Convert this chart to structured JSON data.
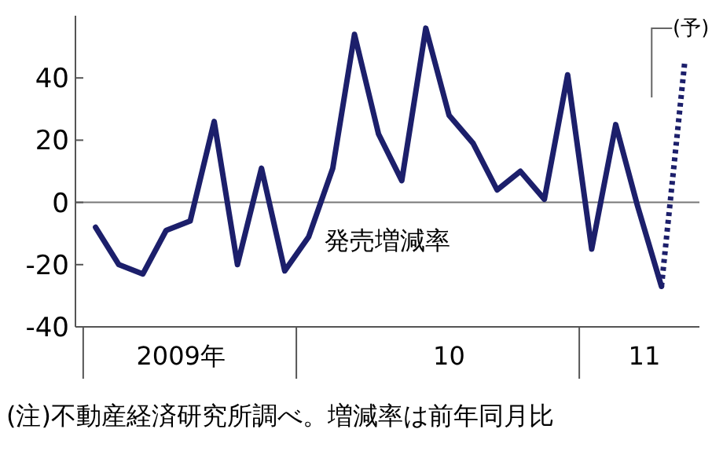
{
  "chart_data": {
    "type": "line",
    "x": [
      "2009-04",
      "2009-05",
      "2009-06",
      "2009-07",
      "2009-08",
      "2009-09",
      "2009-10",
      "2009-11",
      "2009-12",
      "2010-01",
      "2010-02",
      "2010-03",
      "2010-04",
      "2010-05",
      "2010-06",
      "2010-07",
      "2010-08",
      "2010-09",
      "2010-10",
      "2010-11",
      "2010-12",
      "2011-01",
      "2011-02",
      "2011-03",
      "2011-04"
    ],
    "series": [
      {
        "name": "発売増減率",
        "color": "#1c1f6b",
        "values": [
          -8,
          -20,
          -23,
          -9,
          -6,
          26,
          -20,
          11,
          -22,
          -11,
          11,
          54,
          22,
          7,
          56,
          28,
          19,
          4,
          10,
          1,
          41,
          -15,
          25,
          -1,
          -27
        ]
      },
      {
        "type": "line",
        "color": "#1c1f6b",
        "line_style": "dotted",
        "x": [
          "2011-04",
          "2011-05"
        ],
        "values": [
          -27,
          45
        ]
      }
    ],
    "xlim": [
      "2009-03-06",
      "2011-05-20"
    ],
    "xticks": [
      {
        "value": "2009-03-16",
        "label": null
      },
      {
        "value": "2009-07-20",
        "label": "2009年"
      },
      {
        "value": "2009-12-16",
        "label": null
      },
      {
        "value": "2010-07-01",
        "label": "10"
      },
      {
        "value": "2010-12-16",
        "label": null
      },
      {
        "value": "2011-03-10",
        "label": "11"
      }
    ],
    "ylim": [
      -40,
      60
    ],
    "yticks": [
      -40,
      -20,
      0,
      20,
      40
    ],
    "ref_lines": [
      {
        "axis": "y",
        "value": 0,
        "label": null,
        "color": "#777777"
      }
    ],
    "grid": false,
    "legend": false,
    "marker": "none",
    "line_style": "solid",
    "annotations": [
      "(予)",
      "(注)不動産経済研究所調べ。増減率は前年同月比"
    ]
  }
}
